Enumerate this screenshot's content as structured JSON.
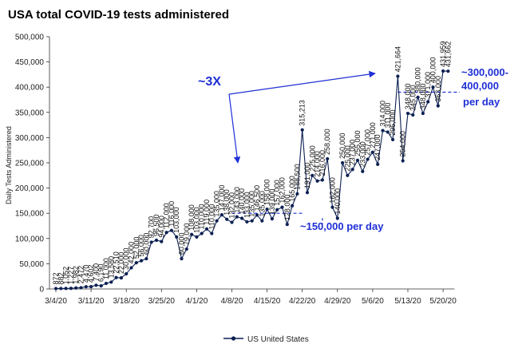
{
  "chart_data": {
    "type": "line",
    "title": "USA total COVID-19 tests administered",
    "ylabel": "Daily Tests Administered",
    "xlabel": "",
    "ylim": [
      0,
      500000
    ],
    "y_ticks": [
      0,
      50000,
      100000,
      150000,
      200000,
      250000,
      300000,
      350000,
      400000,
      450000,
      500000
    ],
    "y_tick_labels": [
      "0",
      "50,000",
      "100,000",
      "150,000",
      "200,000",
      "250,000",
      "300,000",
      "350,000",
      "400,000",
      "450,000",
      "500,000"
    ],
    "x_tick_labels": [
      "3/4/20",
      "3/11/20",
      "3/18/20",
      "3/25/20",
      "4/1/20",
      "4/8/20",
      "4/15/20",
      "4/22/20",
      "4/29/20",
      "5/6/20",
      "5/13/20",
      "5/20/20"
    ],
    "x_dates": [
      "3/4/20",
      "3/5/20",
      "3/6/20",
      "3/7/20",
      "3/8/20",
      "3/9/20",
      "3/10/20",
      "3/11/20",
      "3/12/20",
      "3/13/20",
      "3/14/20",
      "3/15/20",
      "3/16/20",
      "3/17/20",
      "3/18/20",
      "3/19/20",
      "3/20/20",
      "3/21/20",
      "3/22/20",
      "3/23/20",
      "3/24/20",
      "3/25/20",
      "3/26/20",
      "3/27/20",
      "3/28/20",
      "3/29/20",
      "3/30/20",
      "3/31/20",
      "4/1/20",
      "4/2/20",
      "4/3/20",
      "4/4/20",
      "4/5/20",
      "4/6/20",
      "4/7/20",
      "4/8/20",
      "4/9/20",
      "4/10/20",
      "4/11/20",
      "4/12/20",
      "4/13/20",
      "4/14/20",
      "4/15/20",
      "4/16/20",
      "4/17/20",
      "4/18/20",
      "4/19/20",
      "4/20/20",
      "4/21/20",
      "4/22/20",
      "4/23/20",
      "4/24/20",
      "4/25/20",
      "4/26/20",
      "4/27/20",
      "4/28/20",
      "4/29/20",
      "4/30/20",
      "5/1/20",
      "5/2/20",
      "5/3/20",
      "5/4/20",
      "5/5/20",
      "5/6/20",
      "5/7/20",
      "5/8/20",
      "5/9/20",
      "5/10/20",
      "5/11/20",
      "5/12/20",
      "5/13/20",
      "5/14/20",
      "5/15/20",
      "5/16/20",
      "5/17/20",
      "5/18/20",
      "5/19/20",
      "5/20/20",
      "5/21/20"
    ],
    "series": [
      {
        "name": "US United States",
        "color": "#0b1f52",
        "values": [
          872,
          882,
          1052,
          1227,
          1982,
          2472,
          4470,
          4602,
          7400,
          6190,
          11000,
          13580,
          22510,
          22000,
          30000,
          42000,
          52000,
          56000,
          60000,
          92700,
          96500,
          94000,
          112000,
          116000,
          103000,
          60000,
          79000,
          108000,
          103000,
          110000,
          119000,
          110000,
          135000,
          147000,
          138000,
          132000,
          143000,
          140000,
          133000,
          135000,
          146500,
          135000,
          158000,
          139000,
          157000,
          162000,
          128000,
          165000,
          188500,
          315213,
          191000,
          225000,
          214000,
          216000,
          258000,
          162000,
          140000,
          250000,
          225000,
          237000,
          255000,
          233000,
          257000,
          271000,
          247000,
          314000,
          311000,
          296000,
          421664,
          254000,
          348000,
          345000,
          380000,
          348000,
          371000,
          400000,
          363000,
          431959,
          431662
        ]
      }
    ],
    "data_labels": [
      "872",
      "882",
      "1,052",
      "1,227",
      "1,982",
      "2,472",
      "4,470",
      "4,602",
      "7,400",
      "6,190",
      "11,000",
      "13,580",
      "22,510",
      "22,000",
      "30,000",
      "42,000",
      "52,000",
      "56,000",
      "60,000",
      "92,700",
      "96,500",
      "94,000",
      "112,000",
      "116,000",
      "103,000",
      "60,000",
      "79,000",
      "108,000",
      "103,000",
      "110,000",
      "119,000",
      "110,000",
      "135,000",
      "147,000",
      "138,000",
      "132,000",
      "143,000",
      "140,000",
      "133,000",
      "135,000",
      "146,500",
      "135,000",
      "158,000",
      "139,000",
      "157,000",
      "162,000",
      "128,000",
      "165,000",
      "188,500",
      "315,213",
      "191,000",
      "225,000",
      "214,000",
      "216,000",
      "258,000",
      "162,000",
      "140,000",
      "250,000",
      "225,000",
      "237,000",
      "255,000",
      "233,000",
      "257,000",
      "271,000",
      "247,000",
      "314,000",
      "311,000",
      "296,000",
      "421,664",
      "254,000",
      "348,000",
      "345,000",
      "380,000",
      "348,000",
      "371,000",
      "400,000",
      "363,000",
      "431,959",
      "431,662"
    ],
    "legend": {
      "placement": "bottom-center",
      "label": "US United States"
    },
    "grid": false,
    "annotations": {
      "three_x": "~3X",
      "low_label": "~150,000 per day",
      "high_label_line1": "~300,000-",
      "high_label_line2": "400,000",
      "high_label_line3": "per day",
      "low_reference_value": 150000,
      "high_reference_value": 390000
    }
  }
}
